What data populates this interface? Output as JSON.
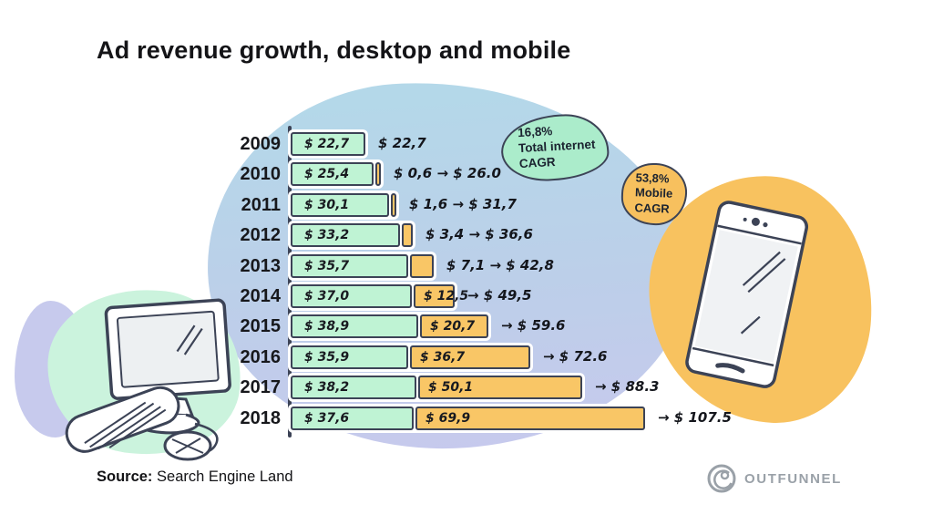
{
  "title": "Ad revenue growth, desktop and mobile",
  "source": {
    "label": "Source:",
    "value": "Search Engine Land"
  },
  "logo": {
    "text": "OUTFUNNEL"
  },
  "annotations": {
    "internet": {
      "line1": "16,8%",
      "line2": "Total internet",
      "line3": "CAGR"
    },
    "mobile": {
      "line1": "53,8%",
      "line2": "Mobile",
      "line3": "CAGR"
    }
  },
  "colors": {
    "desktop_bar": "#bff3d4",
    "mobile_bar": "#f9c666",
    "outline": "#3c4356",
    "blob_top": "#b4d8e9",
    "blob_bottom": "#c7c9ed",
    "computer_blob": "#cbf3dd",
    "phone_blob": "#f8c25f",
    "internet_bubble": "#abeccb",
    "mobile_bubble": "#f7c05e",
    "logo_gray": "#9aa1a8"
  },
  "chart_data": {
    "type": "bar",
    "orientation": "horizontal",
    "stacked": true,
    "unit": "$ billions",
    "title": "Ad revenue growth, desktop and mobile",
    "categories": [
      "2009",
      "2010",
      "2011",
      "2012",
      "2013",
      "2014",
      "2015",
      "2016",
      "2017",
      "2018"
    ],
    "series": [
      {
        "name": "Desktop",
        "values": [
          22.7,
          25.4,
          30.1,
          33.2,
          35.7,
          37.0,
          38.9,
          35.9,
          38.2,
          37.6
        ]
      },
      {
        "name": "Mobile",
        "values": [
          0,
          0.6,
          1.6,
          3.4,
          7.1,
          12.5,
          20.7,
          36.7,
          50.1,
          69.9
        ]
      }
    ],
    "totals": [
      22.7,
      26.0,
      31.7,
      36.6,
      42.8,
      49.5,
      59.6,
      72.6,
      88.3,
      107.5
    ],
    "xlim": [
      0,
      110
    ],
    "legend": "none",
    "rows": [
      {
        "year": "2009",
        "desktop": 22.7,
        "mobile": 0,
        "total": 22.7,
        "desktop_label": "$ 22,7",
        "mobile_label": "",
        "outside_label": "$ 22,7"
      },
      {
        "year": "2010",
        "desktop": 25.4,
        "mobile": 0.6,
        "total": 26.0,
        "desktop_label": "$ 25,4",
        "mobile_label": "",
        "outside_label": "$ 0,6 → $ 26.0"
      },
      {
        "year": "2011",
        "desktop": 30.1,
        "mobile": 1.6,
        "total": 31.7,
        "desktop_label": "$ 30,1",
        "mobile_label": "",
        "outside_label": "$ 1,6 → $ 31,7"
      },
      {
        "year": "2012",
        "desktop": 33.2,
        "mobile": 3.4,
        "total": 36.6,
        "desktop_label": "$ 33,2",
        "mobile_label": "",
        "outside_label": "$ 3,4 → $ 36,6"
      },
      {
        "year": "2013",
        "desktop": 35.7,
        "mobile": 7.1,
        "total": 42.8,
        "desktop_label": "$ 35,7",
        "mobile_label": "",
        "outside_label": "$ 7,1 → $ 42,8"
      },
      {
        "year": "2014",
        "desktop": 37.0,
        "mobile": 12.5,
        "total": 49.5,
        "desktop_label": "$ 37,0",
        "mobile_label": "$ 12,5",
        "outside_label": "→ $ 49,5"
      },
      {
        "year": "2015",
        "desktop": 38.9,
        "mobile": 20.7,
        "total": 59.6,
        "desktop_label": "$ 38,9",
        "mobile_label": "$ 20,7",
        "outside_label": "→ $ 59.6"
      },
      {
        "year": "2016",
        "desktop": 35.9,
        "mobile": 36.7,
        "total": 72.6,
        "desktop_label": "$ 35,9",
        "mobile_label": "$ 36,7",
        "outside_label": "→ $ 72.6"
      },
      {
        "year": "2017",
        "desktop": 38.2,
        "mobile": 50.1,
        "total": 88.3,
        "desktop_label": "$ 38,2",
        "mobile_label": "$ 50,1",
        "outside_label": "→ $ 88.3"
      },
      {
        "year": "2018",
        "desktop": 37.6,
        "mobile": 69.9,
        "total": 107.5,
        "desktop_label": "$ 37,6",
        "mobile_label": "$ 69,9",
        "outside_label": "→ $ 107.5"
      }
    ]
  }
}
